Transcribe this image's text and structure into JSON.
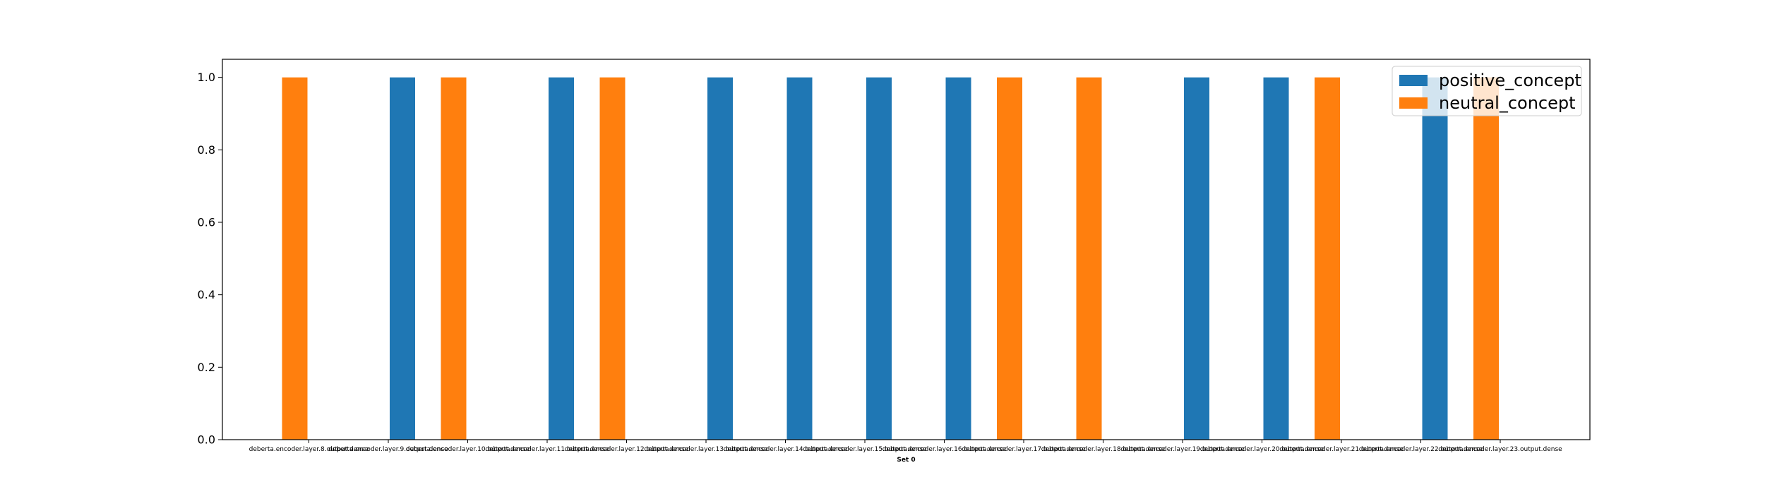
{
  "chart_data": {
    "type": "bar",
    "xlabel": "Set 0",
    "ylabel": "",
    "title": "",
    "ylim": [
      0,
      1.05
    ],
    "yticks": [
      "0.0",
      "0.2",
      "0.4",
      "0.6",
      "0.8",
      "1.0"
    ],
    "legend_position": "top-right",
    "categories": [
      "deberta.encoder.layer.8.output.dense",
      "deberta.encoder.layer.9.output.dense",
      "deberta.encoder.layer.10.output.dense",
      "deberta.encoder.layer.11.output.dense",
      "deberta.encoder.layer.12.output.dense",
      "deberta.encoder.layer.13.output.dense",
      "deberta.encoder.layer.14.output.dense",
      "deberta.encoder.layer.15.output.dense",
      "deberta.encoder.layer.16.output.dense",
      "deberta.encoder.layer.17.output.dense",
      "deberta.encoder.layer.18.output.dense",
      "deberta.encoder.layer.19.output.dense",
      "deberta.encoder.layer.20.output.dense",
      "deberta.encoder.layer.21.output.dense",
      "deberta.encoder.layer.22.output.dense",
      "deberta.encoder.layer.23.output.dense"
    ],
    "series": [
      {
        "name": "positive_concept",
        "color": "#1f77b4",
        "values": [
          0,
          1,
          0,
          1,
          0,
          1,
          1,
          1,
          1,
          0,
          0,
          1,
          1,
          0,
          1,
          0
        ]
      },
      {
        "name": "neutral_concept",
        "color": "#ff7f0e",
        "values": [
          1,
          0,
          1,
          0,
          1,
          0,
          0,
          0,
          0,
          1,
          1,
          0,
          0,
          1,
          0,
          1
        ]
      }
    ]
  }
}
